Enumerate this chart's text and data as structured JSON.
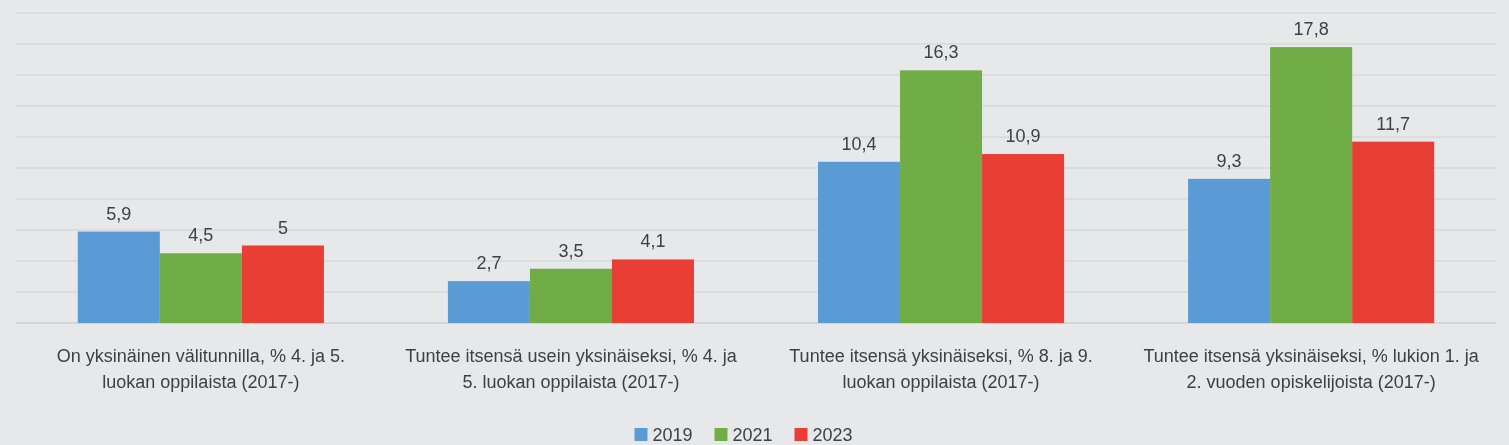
{
  "chart_data": {
    "type": "bar",
    "categories": [
      "On yksinäinen välitunnilla, % 4. ja 5. luokan oppilaista (2017-)",
      "Tuntee itsensä usein yksinäiseksi, % 4. ja 5. luokan oppilaista (2017-)",
      "Tuntee itsensä yksinäiseksi, % 8. ja 9. luokan oppilaista (2017-)",
      "Tuntee itsensä yksinäiseksi, % lukion 1. ja 2. vuoden opiskelijoista (2017-)"
    ],
    "series": [
      {
        "name": "2019",
        "color": "#5b9bd5",
        "values": [
          5.9,
          2.7,
          10.4,
          9.3
        ],
        "value_labels": [
          "5,9",
          "2,7",
          "10,4",
          "9,3"
        ]
      },
      {
        "name": "2021",
        "color": "#70ad47",
        "values": [
          4.5,
          3.5,
          16.3,
          17.8
        ],
        "value_labels": [
          "4,5",
          "3,5",
          "16,3",
          "17,8"
        ]
      },
      {
        "name": "2023",
        "color": "#e83e33",
        "values": [
          5,
          4.1,
          10.9,
          11.7
        ],
        "value_labels": [
          "5",
          "4,1",
          "10,9",
          "11,7"
        ]
      }
    ],
    "ylim": [
      0,
      20
    ],
    "yticks": [
      {
        "value": 0,
        "label": null
      },
      {
        "value": 2,
        "label": null
      },
      {
        "value": 4,
        "label": null
      },
      {
        "value": 6,
        "label": null
      },
      {
        "value": 8,
        "label": null
      },
      {
        "value": 10,
        "label": null
      },
      {
        "value": 12,
        "label": null
      },
      {
        "value": 14,
        "label": null
      },
      {
        "value": 16,
        "label": null
      },
      {
        "value": 18,
        "label": null
      },
      {
        "value": 20,
        "label": null
      }
    ],
    "grid": "y",
    "tick_labels": "x",
    "legend": "bottom"
  }
}
